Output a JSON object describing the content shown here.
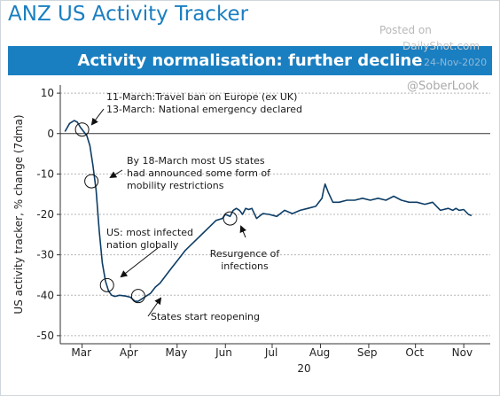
{
  "header": {
    "brand_title": "ANZ US Activity Tracker",
    "banner_title": "Activity normalisation: further decline"
  },
  "watermark": {
    "posted": "Posted on",
    "site": "DailyShot.com",
    "date": "24-Nov-2020",
    "handle": "@SoberLook"
  },
  "colors": {
    "line": "#0d3d66",
    "banner": "#1a7fc1",
    "grid": "#b5b5b5"
  },
  "chart_data": {
    "type": "line",
    "title": "",
    "xlabel": "20",
    "ylabel": "US activity tracker, % change (7dma)",
    "ylim": [
      -52,
      12
    ],
    "yticks": [
      10,
      0,
      -10,
      -20,
      -30,
      -40,
      -50
    ],
    "month_ticks": [
      {
        "label": "Mar",
        "day": 60
      },
      {
        "label": "Apr",
        "day": 91
      },
      {
        "label": "May",
        "day": 121
      },
      {
        "label": "Jun",
        "day": 152
      },
      {
        "label": "Jul",
        "day": 182
      },
      {
        "label": "Aug",
        "day": 213
      },
      {
        "label": "Sep",
        "day": 244
      },
      {
        "label": "Oct",
        "day": 274
      },
      {
        "label": "Nov",
        "day": 305
      }
    ],
    "xlim_day": [
      46,
      322
    ],
    "grid": "horizontal",
    "series": [
      {
        "name": "",
        "x_day": [
          49,
          52,
          55,
          57,
          59,
          61,
          63,
          65,
          67,
          69,
          71,
          73,
          75,
          77,
          79,
          81,
          84,
          88,
          91,
          94,
          96,
          98,
          100,
          102,
          104,
          107,
          110,
          114,
          118,
          122,
          126,
          130,
          134,
          138,
          142,
          146,
          150,
          152,
          155,
          157,
          159,
          161,
          163,
          165,
          167,
          169,
          172,
          176,
          180,
          185,
          190,
          195,
          200,
          205,
          210,
          214,
          215,
          216,
          218,
          221,
          225,
          230,
          235,
          240,
          245,
          250,
          255,
          260,
          265,
          270,
          275,
          280,
          285,
          290,
          295,
          298,
          300,
          302,
          305,
          308,
          310
        ],
        "values": [
          0.5,
          2.5,
          3.2,
          2.8,
          1.5,
          0.5,
          -0.5,
          -3,
          -8,
          -14,
          -24,
          -32,
          -36.5,
          -39,
          -40,
          -40.3,
          -40,
          -40.2,
          -40.5,
          -41.5,
          -41.5,
          -41,
          -40.5,
          -40,
          -39.5,
          -38,
          -37,
          -35,
          -33,
          -31,
          -29,
          -27.5,
          -26,
          -24.5,
          -23,
          -21.5,
          -21,
          -20,
          -20.5,
          -19,
          -18.5,
          -19,
          -20,
          -18.5,
          -18.8,
          -18.5,
          -21,
          -19.8,
          -20,
          -20.5,
          -19,
          -19.8,
          -19,
          -18.5,
          -18,
          -16,
          -14,
          -12.5,
          -14.5,
          -17,
          -17,
          -16.5,
          -16.5,
          -16,
          -16.5,
          -16,
          -16.5,
          -15.5,
          -16.5,
          -17,
          -17,
          -17.5,
          -17,
          -19,
          -18.5,
          -19,
          -18.5,
          -19,
          -18.8,
          -20,
          -20.3
        ]
      }
    ],
    "highlight_circles": [
      {
        "day": 60,
        "value": 1
      },
      {
        "day": 66,
        "value": -11.8
      },
      {
        "day": 76,
        "value": -37.5
      },
      {
        "day": 96,
        "value": -40.2
      },
      {
        "day": 155,
        "value": -21
      }
    ],
    "annotations": [
      {
        "lines": [
          "11-March:Travel ban on Europe (ex UK)",
          "13-March: National emergency declared"
        ]
      },
      {
        "lines": [
          "By 18-March most US states",
          "had announced some form of",
          "mobility restrictions"
        ]
      },
      {
        "lines": [
          "US: most infected",
          "nation globally"
        ]
      },
      {
        "lines": [
          "Resurgence of",
          "infections"
        ]
      },
      {
        "lines": [
          "States start reopening"
        ]
      }
    ]
  }
}
